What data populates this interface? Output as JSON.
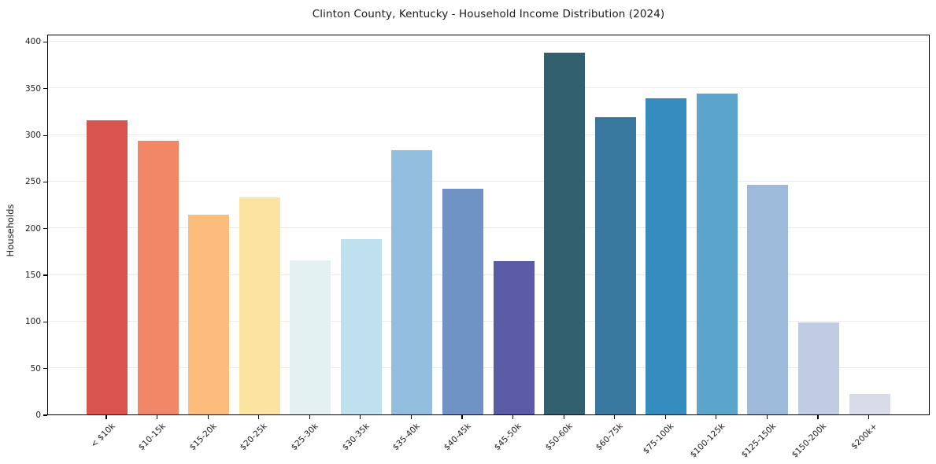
{
  "chart_data": {
    "type": "bar",
    "title": "Clinton County, Kentucky - Household Income Distribution (2024)",
    "xlabel": "",
    "ylabel": "Households",
    "categories": [
      "< $10k",
      "$10-15k",
      "$15-20k",
      "$20-25k",
      "$25-30k",
      "$30-35k",
      "$35-40k",
      "$40-45k",
      "$45-50k",
      "$50-60k",
      "$60-75k",
      "$75-100k",
      "$100-125k",
      "$125-150k",
      "$150-200k",
      "$200k+"
    ],
    "values": [
      315,
      293,
      214,
      233,
      165,
      188,
      283,
      242,
      164,
      388,
      319,
      339,
      344,
      246,
      99,
      22
    ],
    "bar_colors": [
      "#d9544e",
      "#f28768",
      "#fcbc7c",
      "#fde3a1",
      "#e4f1f3",
      "#bfe0ee",
      "#93bedd",
      "#7093c6",
      "#5b5ba6",
      "#33606f",
      "#38789f",
      "#348dbe",
      "#5ba4cc",
      "#9fbbdc",
      "#c0cce3",
      "#d9dbe9"
    ],
    "ylim": [
      0,
      408
    ],
    "yticks": [
      0,
      50,
      100,
      150,
      200,
      250,
      300,
      350,
      400
    ],
    "grid": true,
    "legend": false
  },
  "colors": {
    "background": "#ffffff",
    "grid": "#ebebeb",
    "axis": "#000000",
    "text": "#1a1a1a"
  }
}
